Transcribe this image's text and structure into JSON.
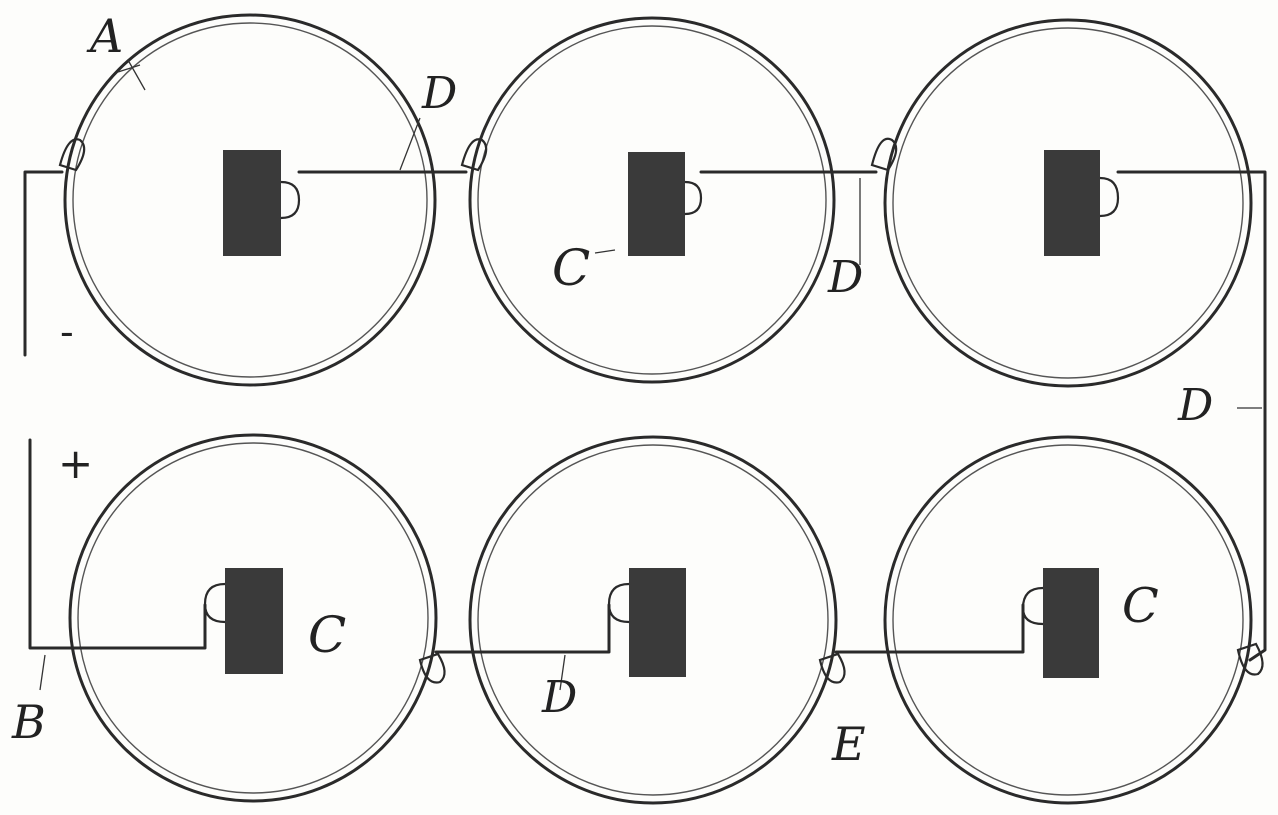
{
  "labels": {
    "A": "A",
    "B": "B",
    "C": "C",
    "D": "D",
    "E": "E",
    "plus": "+",
    "minus": "-"
  }
}
